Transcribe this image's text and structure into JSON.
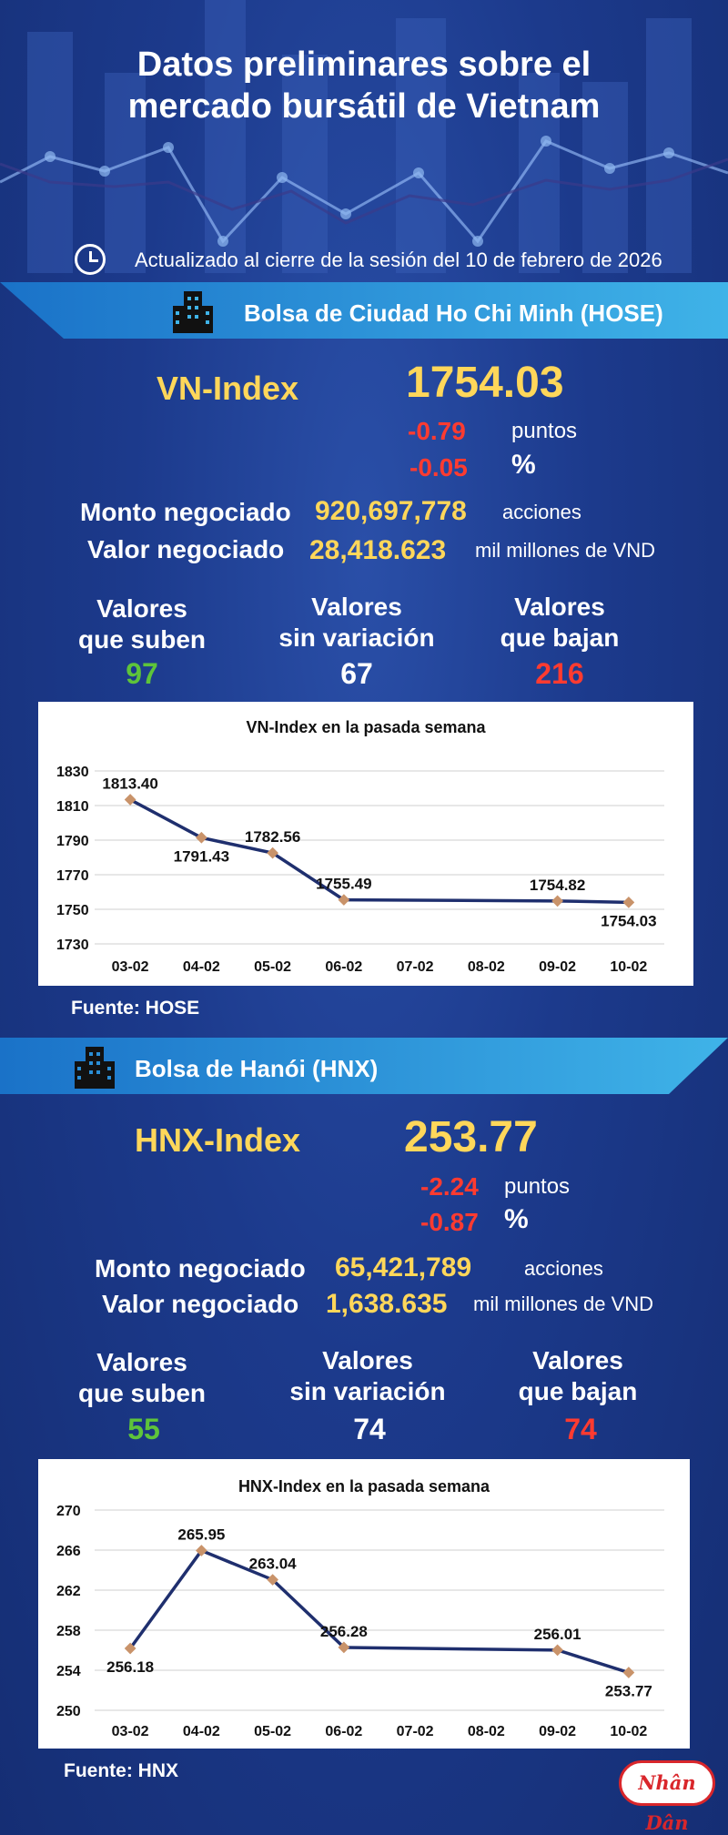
{
  "header": {
    "title_line1": "Datos preliminares sobre el",
    "title_line2": "mercado bursátil de Vietnam",
    "updated": "Actualizado al cierre de la sesión del 10 de febrero de 2026"
  },
  "hose": {
    "banner": "Bolsa de Ciudad Ho Chi Minh (HOSE)",
    "index_name": "VN-Index",
    "index_value": "1754.03",
    "change_points": "-0.79",
    "points_unit": "puntos",
    "change_pct": "-0.05",
    "pct_unit": "%",
    "volume_label": "Monto negociado",
    "volume_value": "920,697,778",
    "volume_unit": "acciones",
    "value_label": "Valor negociado",
    "value_value": "28,418.623",
    "value_unit": "mil millones de VND",
    "up_line1": "Valores",
    "up_line2": "que suben",
    "up_count": "97",
    "flat_line1": "Valores",
    "flat_line2": "sin variación",
    "flat_count": "67",
    "down_line1": "Valores",
    "down_line2": "que bajan",
    "down_count": "216",
    "source": "Fuente: HOSE"
  },
  "hnx": {
    "banner": "Bolsa de Hanói (HNX)",
    "index_name": "HNX-Index",
    "index_value": "253.77",
    "change_points": "-2.24",
    "points_unit": "puntos",
    "change_pct": "-0.87",
    "pct_unit": "%",
    "volume_label": "Monto negociado",
    "volume_value": "65,421,789",
    "volume_unit": "acciones",
    "value_label": "Valor negociado",
    "value_value": "1,638.635",
    "value_unit": "mil millones de VND",
    "up_line1": "Valores",
    "up_line2": "que suben",
    "up_count": "55",
    "flat_line1": "Valores",
    "flat_line2": "sin variación",
    "flat_count": "74",
    "down_line1": "Valores",
    "down_line2": "que bajan",
    "down_count": "74",
    "source": "Fuente:  HNX"
  },
  "logo_text": "Nhân Dân",
  "colors": {
    "accent": "#ffd75a",
    "negative": "#ff3b30",
    "positive": "#5ec43a",
    "line": "#1f2f6e",
    "marker": "#c9936a"
  },
  "chart_data": [
    {
      "type": "line",
      "title": "VN-Index en la pasada semana",
      "categories": [
        "03-02",
        "04-02",
        "05-02",
        "06-02",
        "07-02",
        "08-02",
        "09-02",
        "10-02"
      ],
      "values": [
        1813.4,
        1791.43,
        1782.56,
        1755.49,
        null,
        null,
        1754.82,
        1754.03
      ],
      "labels": [
        "1813.40",
        "1791.43",
        "1782.56",
        "1755.49",
        "",
        "",
        "1754.82",
        "1754.03"
      ],
      "label_pos": [
        "above",
        "below",
        "above",
        "above",
        "",
        "",
        "above",
        "below"
      ],
      "yticks": [
        1730,
        1750,
        1770,
        1790,
        1810,
        1830
      ],
      "ylim": [
        1730,
        1830
      ],
      "grid": true
    },
    {
      "type": "line",
      "title": "HNX-Index en la pasada semana",
      "categories": [
        "03-02",
        "04-02",
        "05-02",
        "06-02",
        "07-02",
        "08-02",
        "09-02",
        "10-02"
      ],
      "values": [
        256.18,
        265.95,
        263.04,
        256.28,
        null,
        null,
        256.01,
        253.77
      ],
      "labels": [
        "256.18",
        "265.95",
        "263.04",
        "256.28",
        "",
        "",
        "256.01",
        "253.77"
      ],
      "label_pos": [
        "below",
        "above",
        "above",
        "above",
        "",
        "",
        "above",
        "below"
      ],
      "yticks": [
        250,
        254,
        258,
        262,
        266,
        270
      ],
      "ylim": [
        250,
        270
      ],
      "grid": true
    }
  ]
}
